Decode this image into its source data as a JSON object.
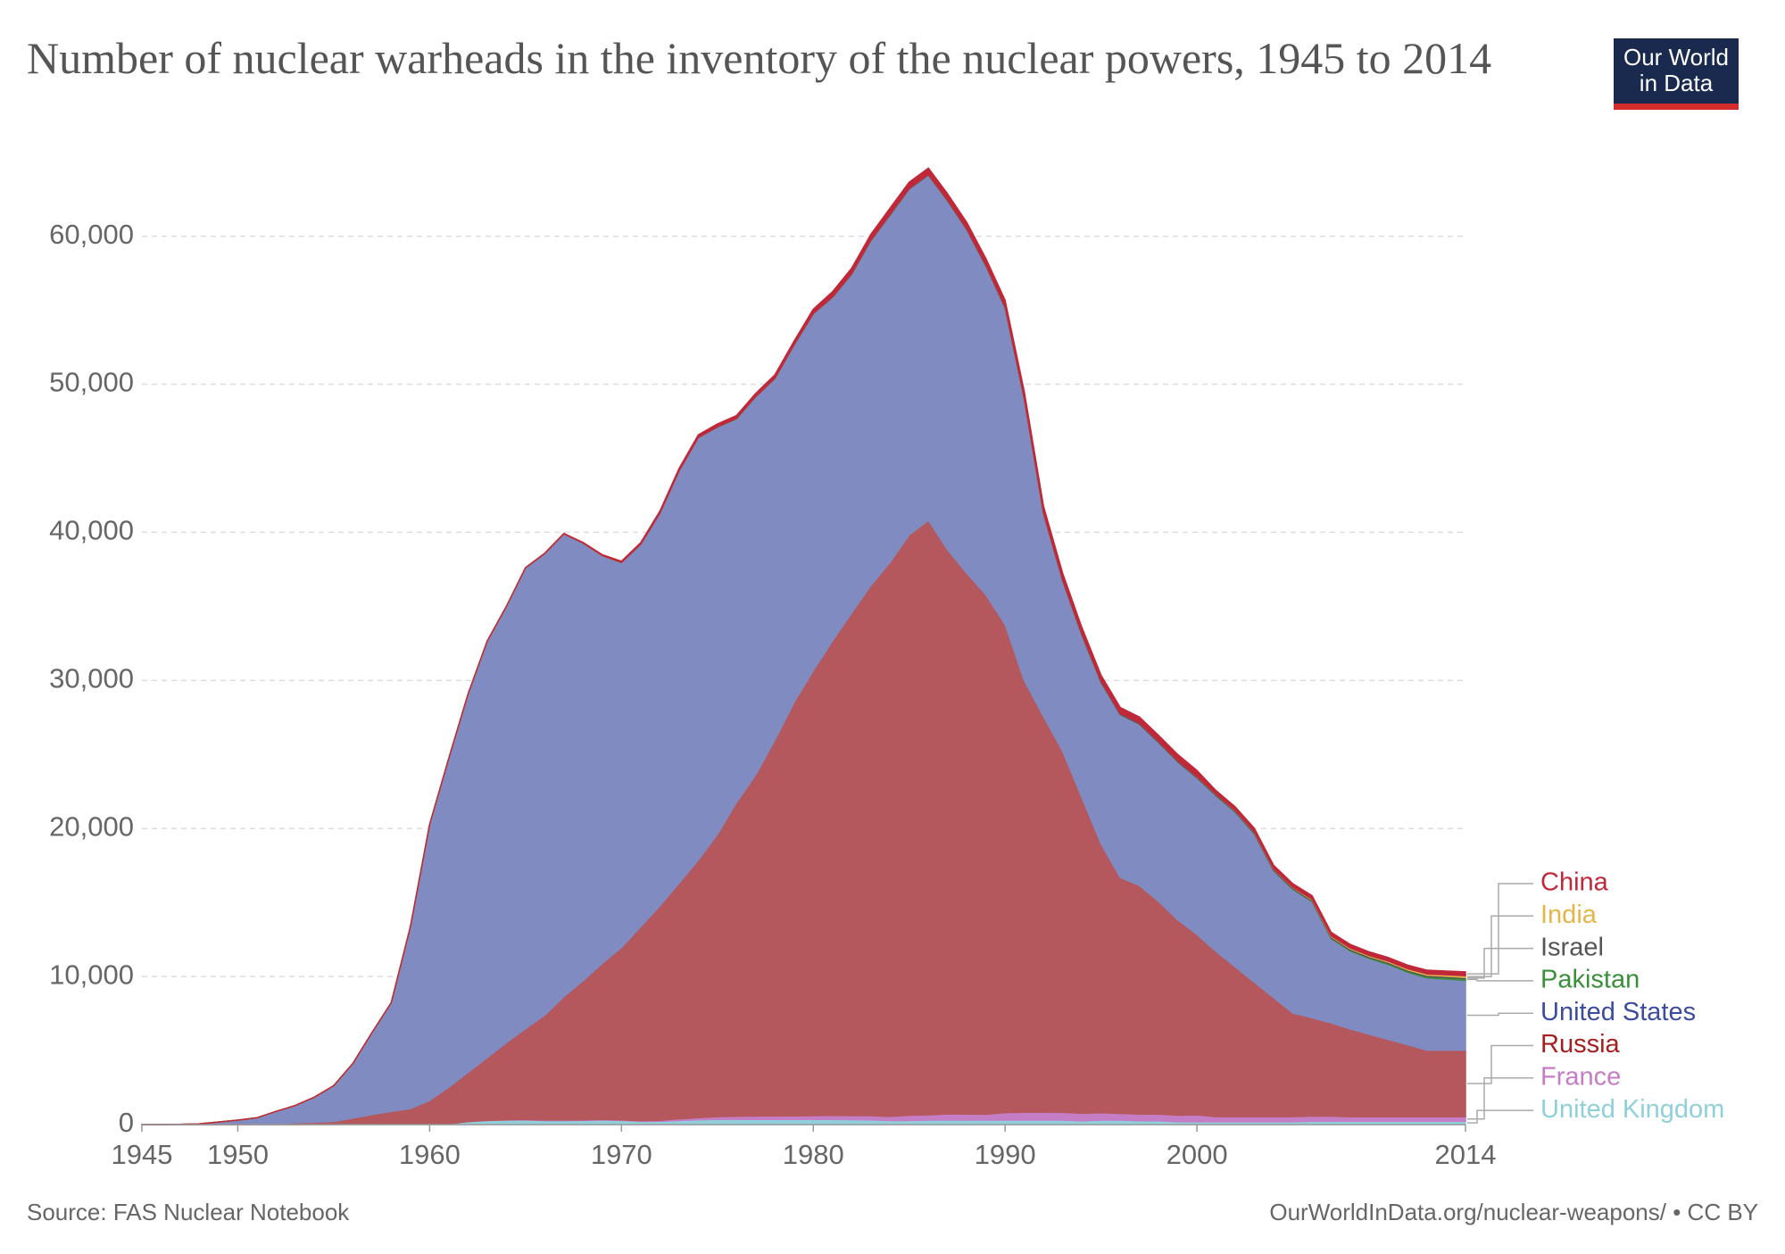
{
  "chart_data": {
    "type": "stacked-area",
    "title": "Number of nuclear warheads in the inventory of the nuclear powers, 1945 to 2014",
    "logo": "Our World in Data",
    "source": "Source: FAS Nuclear Notebook",
    "credit": "OurWorldInData.org/nuclear-weapons/ • CC BY",
    "x": [
      1945,
      1946,
      1947,
      1948,
      1949,
      1950,
      1951,
      1952,
      1953,
      1954,
      1955,
      1956,
      1957,
      1958,
      1959,
      1960,
      1961,
      1962,
      1963,
      1964,
      1965,
      1966,
      1967,
      1968,
      1969,
      1970,
      1971,
      1972,
      1973,
      1974,
      1975,
      1976,
      1977,
      1978,
      1979,
      1980,
      1981,
      1982,
      1983,
      1984,
      1985,
      1986,
      1987,
      1988,
      1989,
      1990,
      1991,
      1992,
      1993,
      1994,
      1995,
      1996,
      1997,
      1998,
      1999,
      2000,
      2001,
      2002,
      2003,
      2004,
      2005,
      2006,
      2007,
      2008,
      2009,
      2010,
      2011,
      2012,
      2013,
      2014
    ],
    "xlim": [
      1945,
      2014
    ],
    "xticks": [
      1945,
      1950,
      1960,
      1970,
      1980,
      1990,
      2000,
      2014
    ],
    "ylim": [
      0,
      64500
    ],
    "yticks": [
      0,
      {
        "value": 10000,
        "label": "10,000"
      },
      {
        "value": 20000,
        "label": "20,000"
      },
      {
        "value": 30000,
        "label": "30,000"
      },
      {
        "value": 40000,
        "label": "40,000"
      },
      {
        "value": 50000,
        "label": "50,000"
      },
      {
        "value": 60000,
        "label": "60,000"
      }
    ],
    "grid": true,
    "series": [
      {
        "name": "United Kingdom",
        "color": "#8fd0da",
        "values": [
          0,
          0,
          0,
          0,
          0,
          0,
          0,
          0,
          1,
          5,
          10,
          15,
          20,
          22,
          25,
          30,
          50,
          205,
          280,
          310,
          310,
          270,
          270,
          280,
          308,
          280,
          220,
          220,
          275,
          325,
          350,
          350,
          350,
          350,
          350,
          350,
          350,
          335,
          320,
          270,
          270,
          300,
          300,
          300,
          300,
          300,
          300,
          300,
          300,
          250,
          300,
          300,
          260,
          260,
          185,
          185,
          185,
          185,
          185,
          185,
          185,
          225,
          225,
          225,
          225,
          225,
          225,
          225,
          225,
          225
        ]
      },
      {
        "name": "France",
        "color": "#c57dc5",
        "values": [
          0,
          0,
          0,
          0,
          0,
          0,
          0,
          0,
          0,
          0,
          0,
          0,
          0,
          0,
          0,
          0,
          0,
          0,
          0,
          4,
          32,
          36,
          36,
          36,
          36,
          36,
          45,
          70,
          116,
          145,
          188,
          212,
          228,
          235,
          235,
          250,
          274,
          274,
          279,
          280,
          360,
          355,
          420,
          411,
          404,
          504,
          538,
          540,
          525,
          510,
          500,
          450,
          450,
          450,
          450,
          470,
          350,
          350,
          350,
          350,
          350,
          350,
          350,
          300,
          300,
          300,
          300,
          300,
          300,
          300
        ]
      },
      {
        "name": "Russia",
        "color": "#b5585d",
        "values": [
          0,
          0,
          0,
          0,
          1,
          5,
          25,
          50,
          120,
          150,
          200,
          426,
          660,
          869,
          1060,
          1605,
          2471,
          3322,
          4238,
          5221,
          6129,
          7089,
          8339,
          9399,
          10538,
          11643,
          13092,
          14478,
          15915,
          17385,
          19055,
          21205,
          23044,
          25393,
          27935,
          30062,
          32049,
          33952,
          35804,
          37431,
          39197,
          40159,
          38107,
          36538,
          35078,
          32980,
          29154,
          26734,
          24403,
          21339,
          18179,
          15942,
          15442,
          14368,
          13188,
          12188,
          11152,
          10114,
          9076,
          8038,
          7000,
          6643,
          6286,
          5929,
          5572,
          5215,
          4858,
          4500,
          4500,
          4500
        ]
      },
      {
        "name": "United States",
        "color": "#7f8bc1",
        "values": [
          2,
          9,
          13,
          50,
          170,
          299,
          438,
          841,
          1169,
          1703,
          2422,
          3692,
          5543,
          7345,
          12298,
          18638,
          22229,
          25540,
          28133,
          29463,
          31139,
          31175,
          31255,
          29561,
          27552,
          26008,
          25830,
          26516,
          27835,
          28537,
          27519,
          25914,
          25542,
          24418,
          24138,
          24104,
          23208,
          22886,
          23305,
          23459,
          23368,
          23317,
          23575,
          23205,
          22217,
          21392,
          19008,
          13708,
          11511,
          10979,
          10904,
          11011,
          10903,
          10732,
          10685,
          10577,
          10526,
          10457,
          10027,
          8570,
          8360,
          7853,
          5709,
          5273,
          5113,
          5066,
          4897,
          4881,
          4804,
          4717
        ]
      },
      {
        "name": "Pakistan",
        "color": "#3a8f3a",
        "values": [
          0,
          0,
          0,
          0,
          0,
          0,
          0,
          0,
          0,
          0,
          0,
          0,
          0,
          0,
          0,
          0,
          0,
          0,
          0,
          0,
          0,
          0,
          0,
          0,
          0,
          0,
          0,
          0,
          0,
          0,
          0,
          0,
          0,
          0,
          0,
          0,
          0,
          0,
          0,
          0,
          0,
          0,
          0,
          0,
          0,
          0,
          0,
          0,
          0,
          0,
          0,
          0,
          0,
          2,
          4,
          8,
          12,
          16,
          20,
          24,
          28,
          35,
          45,
          55,
          65,
          75,
          85,
          100,
          110,
          120
        ]
      },
      {
        "name": "Israel",
        "color": "#555555",
        "values": [
          0,
          0,
          0,
          0,
          0,
          0,
          0,
          0,
          0,
          0,
          0,
          0,
          0,
          0,
          0,
          0,
          0,
          0,
          0,
          0,
          0,
          0,
          2,
          4,
          6,
          8,
          10,
          12,
          14,
          16,
          18,
          20,
          22,
          24,
          26,
          28,
          31,
          34,
          37,
          40,
          43,
          46,
          49,
          52,
          55,
          58,
          61,
          63,
          65,
          67,
          69,
          71,
          73,
          75,
          77,
          79,
          80,
          80,
          80,
          80,
          80,
          80,
          80,
          80,
          80,
          80,
          80,
          80,
          80,
          80
        ]
      },
      {
        "name": "India",
        "color": "#e6b54a",
        "values": [
          0,
          0,
          0,
          0,
          0,
          0,
          0,
          0,
          0,
          0,
          0,
          0,
          0,
          0,
          0,
          0,
          0,
          0,
          0,
          0,
          0,
          0,
          0,
          0,
          0,
          0,
          0,
          0,
          0,
          0,
          0,
          0,
          0,
          0,
          0,
          0,
          0,
          0,
          0,
          0,
          0,
          0,
          0,
          0,
          0,
          0,
          0,
          0,
          0,
          0,
          0,
          0,
          0,
          3,
          6,
          10,
          14,
          18,
          22,
          26,
          30,
          40,
          50,
          60,
          60,
          70,
          80,
          90,
          100,
          110
        ]
      },
      {
        "name": "China",
        "color": "#c0283a",
        "values": [
          0,
          0,
          0,
          0,
          0,
          0,
          0,
          0,
          0,
          0,
          0,
          0,
          0,
          0,
          0,
          0,
          0,
          0,
          0,
          1,
          5,
          20,
          25,
          35,
          50,
          75,
          100,
          130,
          150,
          170,
          185,
          190,
          200,
          220,
          235,
          280,
          330,
          360,
          380,
          415,
          410,
          425,
          415,
          430,
          435,
          435,
          435,
          435,
          435,
          435,
          400,
          400,
          400,
          400,
          400,
          400,
          235,
          235,
          235,
          235,
          235,
          235,
          235,
          240,
          240,
          240,
          240,
          250,
          250,
          260
        ]
      }
    ]
  }
}
